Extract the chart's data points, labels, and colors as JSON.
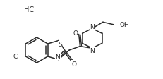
{
  "bg_color": "#ffffff",
  "line_color": "#2a2a2a",
  "line_width": 1.1,
  "font_size": 6.5,
  "figsize": [
    2.32,
    1.13
  ],
  "dpi": 100,
  "HCl_label": "HCl",
  "O_label": "O",
  "S_label": "S",
  "N_label": "N",
  "Cl_label": "Cl",
  "OH_label": "OH"
}
